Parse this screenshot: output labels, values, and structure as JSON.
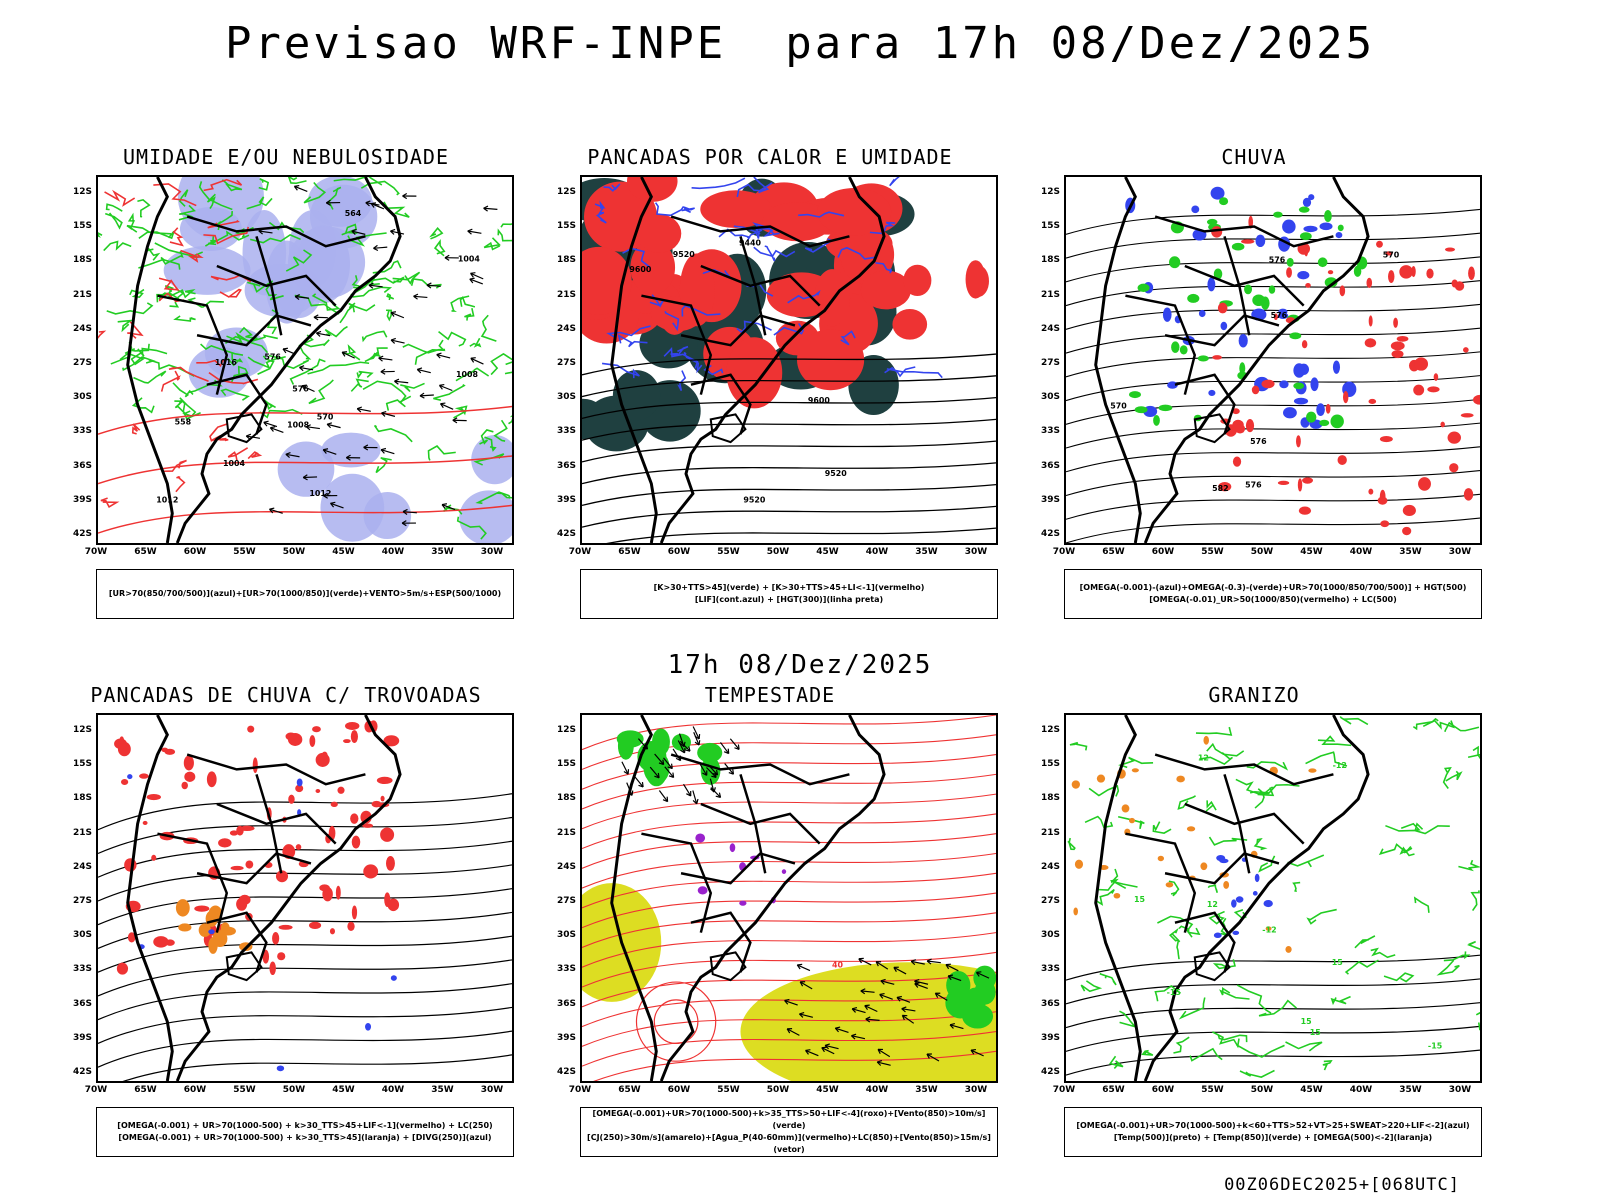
{
  "title": "Previsao WRF-INPE  para 17h 08/Dez/2025",
  "mid_title": "17h 08/Dez/2025",
  "footer": "00Z06DEC2025+[068UTC]",
  "lat_ticks": [
    "12S",
    "15S",
    "18S",
    "21S",
    "24S",
    "27S",
    "30S",
    "33S",
    "36S",
    "39S",
    "42S"
  ],
  "lon_ticks": [
    "70W",
    "65W",
    "60W",
    "55W",
    "50W",
    "45W",
    "40W",
    "35W",
    "30W"
  ],
  "colors": {
    "green": "#22cc22",
    "red": "#ee3333",
    "blue": "#3344ee",
    "lavender": "#aab0ee",
    "darkteal": "#1f4040",
    "yellow": "#dddd22",
    "orange": "#ee8822",
    "purple": "#9922cc"
  },
  "panels": [
    {
      "title": "UMIDADE E/OU NEBULOSIDADE",
      "legend": [
        "[UR>70(850/700/500)](azul)+[UR>70(1000/850)](verde)+VENTO>5m/s+ESP(500/1000)"
      ],
      "labels": [
        "1004",
        "1008",
        "1012",
        "1016",
        "1012",
        "1008",
        "1004",
        "576",
        "570",
        "576",
        "564",
        "558"
      ]
    },
    {
      "title": "PANCADAS POR CALOR E UMIDADE",
      "legend": [
        "[K>30+TTS>45](verde) + [K>30+TTS>45+LI<-1](vermelho)",
        "[LIF](cont.azul) + [HGT(300)](linha preta)"
      ],
      "labels": [
        "9600",
        "9520",
        "9440",
        "9600",
        "9520",
        "9520"
      ]
    },
    {
      "title": "CHUVA",
      "legend": [
        "[OMEGA(-0.001)-(azul)+OMEGA(-0.3)-(verde)+UR>70(1000/850/700/500)] + HGT(500)",
        "[OMEGA(-0.01)_UR>50(1000/850)(vermelho) + LC(500)"
      ],
      "labels": [
        "576",
        "582",
        "576",
        "570",
        "576",
        "576",
        "570"
      ]
    },
    {
      "title": "PANCADAS DE CHUVA C/ TROVOADAS",
      "legend": [
        "[OMEGA(-0.001) + UR>70(1000-500) + k>30_TTS>45+LIF<-1](vermelho) + LC(250)",
        "[OMEGA(-0.001) + UR>70(1000-500) + k>30_TTS>45](laranja) + [DIVG(250)](azul)"
      ],
      "labels": []
    },
    {
      "title": "TEMPESTADE",
      "legend": [
        "[OMEGA(-0.001)+UR>70(1000-500)+k>35_TTS>50+LIF<-4](roxo)+[Vento(850)>10m/s](verde)",
        "[CJ(250)>30m/s](amarelo)+[Agua_P(40-60mm)](vermelho)+LC(850)+[Vento(850)>15m/s](vetor)"
      ],
      "labels": [
        "40"
      ]
    },
    {
      "title": "GRANIZO",
      "legend": [
        "[OMEGA(-0.001)+UR>70(1000-500)+k<60+TTS>52+VT>25+SWEAT>220+LIF<-2](azul)",
        "[Temp(500)](preto) + [Temp(850)](verde) + [OMEGA(500)<-2](laranja)"
      ],
      "labels": [
        "15",
        "-12",
        "-12",
        "15",
        "12",
        "15",
        "12",
        "-15",
        "15",
        "-15"
      ]
    }
  ]
}
